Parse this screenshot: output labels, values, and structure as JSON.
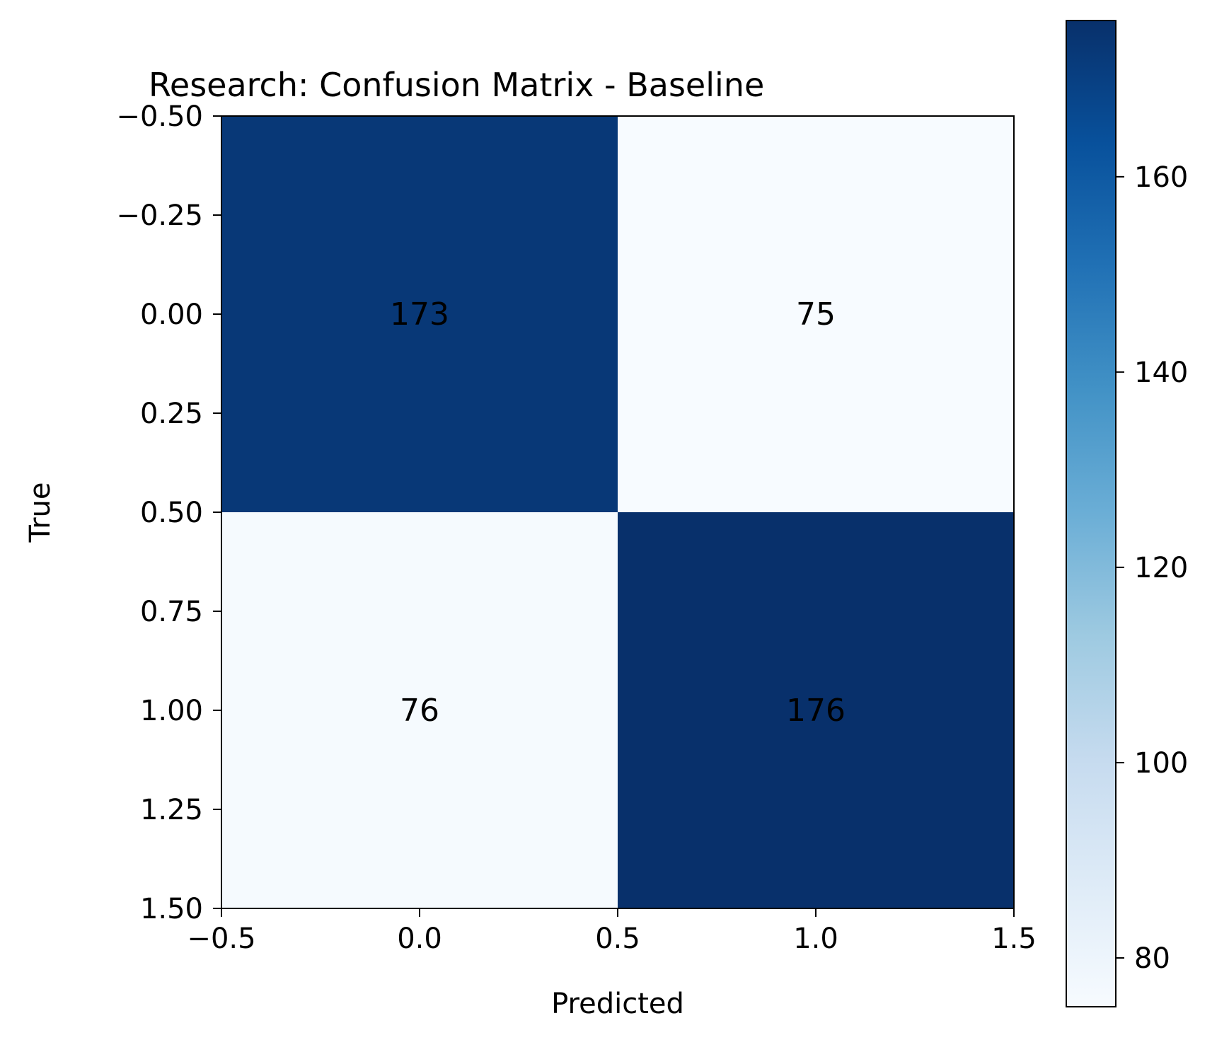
{
  "chart_data": {
    "type": "heatmap",
    "title": "Research: Confusion Matrix - Baseline",
    "xlabel": "Predicted",
    "ylabel": "True",
    "xlim": [
      -0.5,
      1.5
    ],
    "ylim": [
      1.5,
      -0.5
    ],
    "x_ticks": [
      -0.5,
      0.0,
      0.5,
      1.0,
      1.5
    ],
    "x_tick_labels": [
      "−0.5",
      "0.0",
      "0.5",
      "1.0",
      "1.5"
    ],
    "y_ticks": [
      -0.5,
      -0.25,
      0.0,
      0.25,
      0.5,
      0.75,
      1.0,
      1.25,
      1.5
    ],
    "y_tick_labels": [
      "−0.50",
      "−0.25",
      "0.00",
      "0.25",
      "0.50",
      "0.75",
      "1.00",
      "1.25",
      "1.50"
    ],
    "matrix": [
      [
        173,
        75
      ],
      [
        76,
        176
      ]
    ],
    "colormap": "Blues",
    "colorbar": {
      "range": [
        75,
        176
      ],
      "ticks": [
        80,
        100,
        120,
        140,
        160
      ],
      "tick_labels": [
        "80",
        "100",
        "120",
        "140",
        "160"
      ]
    },
    "grid": false,
    "colors": {
      "low": "#f7fbff",
      "high": "#08306b"
    }
  }
}
